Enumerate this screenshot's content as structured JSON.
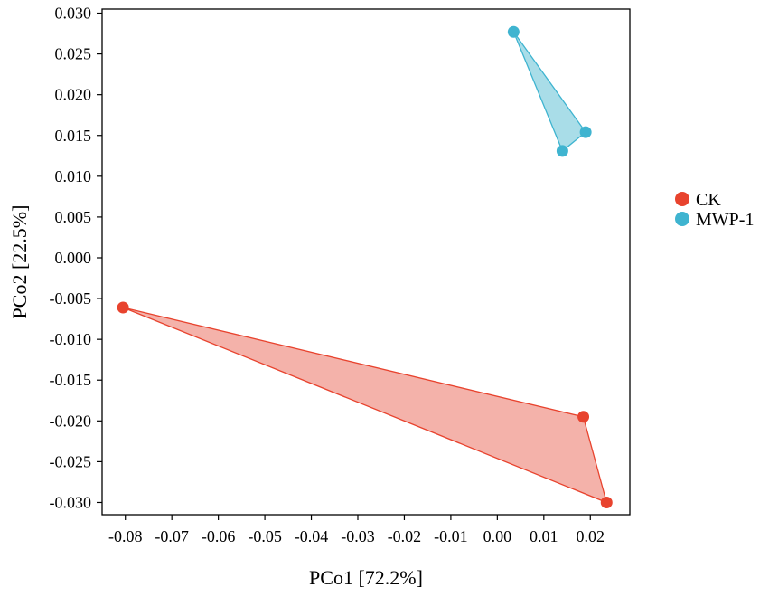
{
  "chart_data": {
    "type": "scatter",
    "xlabel": "PCo1 [72.2%]",
    "ylabel": "PCo2 [22.5%]",
    "xlim": [
      -0.085,
      0.0285
    ],
    "ylim": [
      -0.0315,
      0.0305
    ],
    "x_ticks": [
      -0.08,
      -0.07,
      -0.06,
      -0.05,
      -0.04,
      -0.03,
      -0.02,
      -0.01,
      0.0,
      0.01,
      0.02
    ],
    "x_tick_labels": [
      "-0.08",
      "-0.07",
      "-0.06",
      "-0.05",
      "-0.04",
      "-0.03",
      "-0.02",
      "-0.01",
      "0.00",
      "0.01",
      "0.02"
    ],
    "y_ticks": [
      0.03,
      0.025,
      0.02,
      0.015,
      0.01,
      0.005,
      0.0,
      -0.005,
      -0.01,
      -0.015,
      -0.02,
      -0.025,
      -0.03
    ],
    "y_tick_labels": [
      "0.030",
      "0.025",
      "0.020",
      "0.015",
      "0.010",
      "0.005",
      "0.000",
      "-0.005",
      "-0.010",
      "-0.015",
      "-0.020",
      "-0.025",
      "-0.030"
    ],
    "grid": false,
    "legend_position": "right",
    "series": [
      {
        "name": "CK",
        "color": "#e8432e",
        "fill": "#f4b2aa",
        "points": [
          {
            "x": -0.0805,
            "y": -0.0061
          },
          {
            "x": 0.0185,
            "y": -0.0195
          },
          {
            "x": 0.0235,
            "y": -0.03
          }
        ]
      },
      {
        "name": "MWP-1",
        "color": "#3fb4d0",
        "fill": "#a9dde8",
        "points": [
          {
            "x": 0.0035,
            "y": 0.0277
          },
          {
            "x": 0.019,
            "y": 0.0154
          },
          {
            "x": 0.014,
            "y": 0.0131
          }
        ]
      }
    ]
  }
}
